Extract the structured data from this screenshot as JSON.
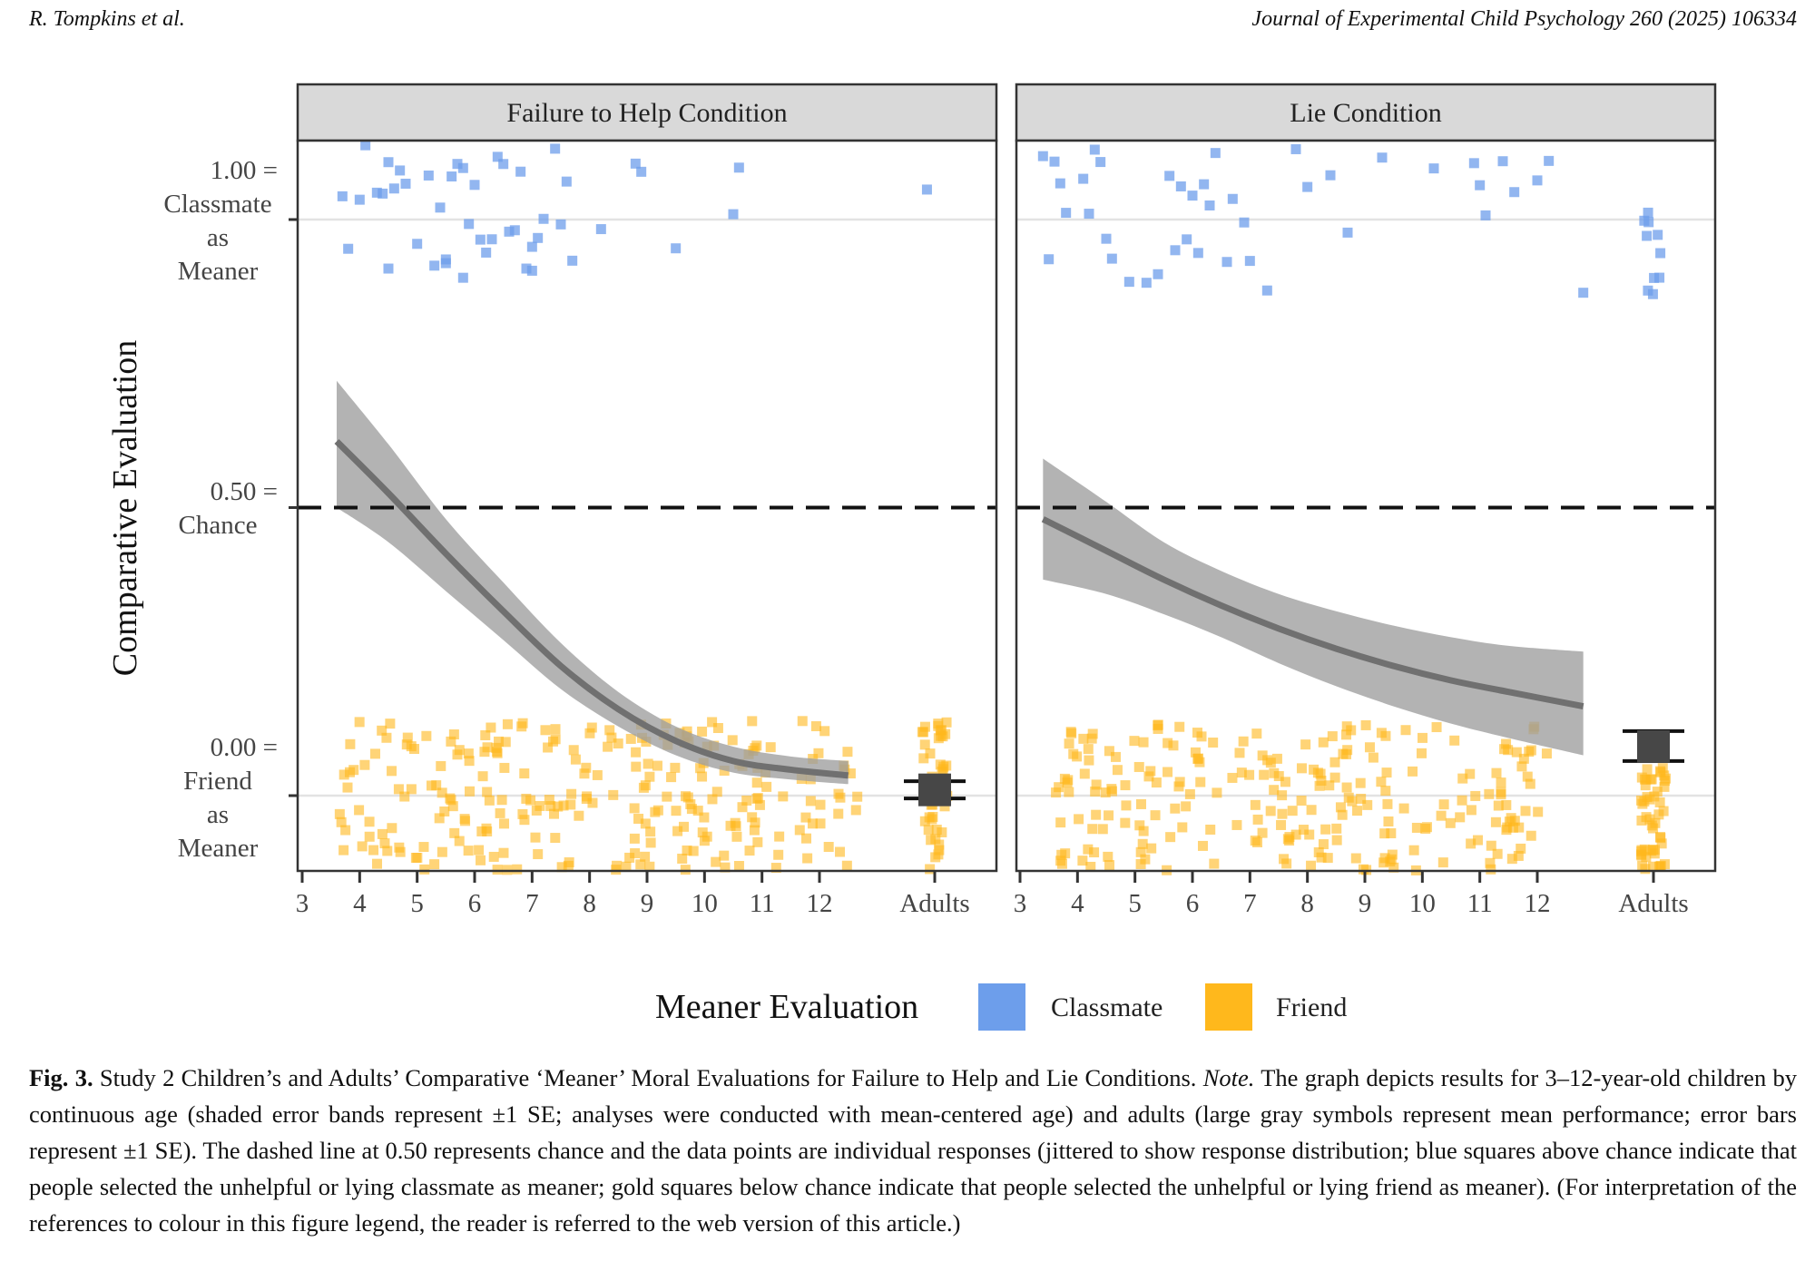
{
  "header": {
    "author": "R. Tompkins et al.",
    "journal": "Journal of Experimental Child Psychology 260 (2025) 106334"
  },
  "caption": {
    "label": "Fig. 3.",
    "title": " Study 2 Children’s and Adults’ Comparative ‘Meaner’ Moral Evaluations for Failure to Help and Lie Conditions. ",
    "note_label": "Note.",
    "body": " The graph depicts results for 3–12-year-old children by continuous age (shaded error bands represent ±1 SE; analyses were conducted with mean-centered age) and adults (large gray symbols represent mean performance; error bars represent ±1 SE). The dashed line at 0.50 represents chance and the data points are individual responses (jittered to show response distribution; blue squares above chance indicate that people selected the unhelpful or lying classmate as meaner; gold squares below chance indicate that people selected the unhelpful or lying friend as meaner). (For interpretation of the references to colour in this figure legend, the reader is referred to the web version of this article.)"
  },
  "colors": {
    "classmate": "#6d9eeb",
    "friend": "#ffb81c",
    "band": "#9e9e9e",
    "fit_line": "#707070",
    "mean_box": "#474747",
    "strip_bg": "#d9d9d9",
    "gridline": "#e3e3e3"
  },
  "chart_data": {
    "type": "scatter",
    "ylabel": "Comparative Evaluation",
    "ylim": [
      -0.13,
      1.1
    ],
    "y_ticks": [
      {
        "value": 1.0,
        "label": [
          "1.00 =",
          "Classmate",
          "as",
          "Meaner"
        ]
      },
      {
        "value": 0.5,
        "label": [
          "0.50 =",
          "Chance"
        ]
      },
      {
        "value": 0.0,
        "label": [
          "0.00 =",
          "Friend",
          "as",
          "Meaner"
        ]
      }
    ],
    "x_ticks": [
      "3",
      "4",
      "5",
      "6",
      "7",
      "8",
      "9",
      "10",
      "11",
      "12",
      "Adults"
    ],
    "chance_line": 0.5,
    "legend": {
      "title": "Meaner Evaluation",
      "position": "bottom",
      "entries": [
        {
          "label": "Classmate",
          "color": "#6d9eeb"
        },
        {
          "label": "Friend",
          "color": "#ffb81c"
        }
      ]
    },
    "panels": [
      {
        "title": "Failure to Help Condition",
        "fit": {
          "age": [
            3.6,
            4.5,
            5.5,
            6.5,
            7.5,
            8.5,
            9.5,
            10.5,
            11.5,
            12.5
          ],
          "mean": [
            0.615,
            0.525,
            0.42,
            0.32,
            0.225,
            0.15,
            0.095,
            0.06,
            0.045,
            0.035
          ],
          "lower": [
            0.5,
            0.44,
            0.355,
            0.27,
            0.185,
            0.12,
            0.07,
            0.04,
            0.028,
            0.02
          ],
          "upper": [
            0.72,
            0.61,
            0.48,
            0.37,
            0.265,
            0.18,
            0.12,
            0.085,
            0.068,
            0.06
          ]
        },
        "adults": {
          "mean": 0.01,
          "se_low": -0.005,
          "se_high": 0.025
        },
        "classmate_ages": [
          3.7,
          3.8,
          4.0,
          4.1,
          4.3,
          4.4,
          4.5,
          4.5,
          4.6,
          4.7,
          4.8,
          5.0,
          5.2,
          5.3,
          5.4,
          5.5,
          5.5,
          5.6,
          5.7,
          5.8,
          5.8,
          5.9,
          6.0,
          6.1,
          6.2,
          6.3,
          6.4,
          6.5,
          6.6,
          6.7,
          6.8,
          6.9,
          7.0,
          7.0,
          7.1,
          7.2,
          7.4,
          7.5,
          7.6,
          7.7,
          8.2,
          8.8,
          8.9,
          9.5,
          10.5,
          10.6
        ],
        "adult_classmate": 1,
        "friend_ages_n": 260,
        "adult_friend_n": 45
      },
      {
        "title": "Lie Condition",
        "fit": {
          "age": [
            3.4,
            4.5,
            5.5,
            6.5,
            7.5,
            8.5,
            9.5,
            10.5,
            11.5,
            12.8
          ],
          "mean": [
            0.48,
            0.425,
            0.375,
            0.33,
            0.29,
            0.255,
            0.225,
            0.2,
            0.18,
            0.155
          ],
          "lower": [
            0.375,
            0.35,
            0.315,
            0.275,
            0.23,
            0.19,
            0.155,
            0.125,
            0.1,
            0.07
          ],
          "upper": [
            0.585,
            0.51,
            0.44,
            0.39,
            0.35,
            0.32,
            0.295,
            0.275,
            0.26,
            0.25
          ]
        },
        "adults": {
          "mean": 0.085,
          "se_low": 0.06,
          "se_high": 0.112
        },
        "classmate_ages": [
          3.4,
          3.5,
          3.6,
          3.7,
          3.8,
          4.1,
          4.2,
          4.3,
          4.4,
          4.5,
          4.6,
          4.9,
          5.2,
          5.4,
          5.6,
          5.7,
          5.8,
          5.9,
          6.0,
          6.1,
          6.2,
          6.3,
          6.4,
          6.6,
          6.7,
          6.9,
          7.0,
          7.3,
          7.8,
          8.0,
          8.4,
          8.7,
          9.3,
          10.2,
          10.9,
          11.0,
          11.1,
          11.4,
          11.6,
          12.0,
          12.2,
          12.8
        ],
        "adult_classmate": 10,
        "friend_ages_n": 240,
        "adult_friend_n": 50
      }
    ]
  }
}
